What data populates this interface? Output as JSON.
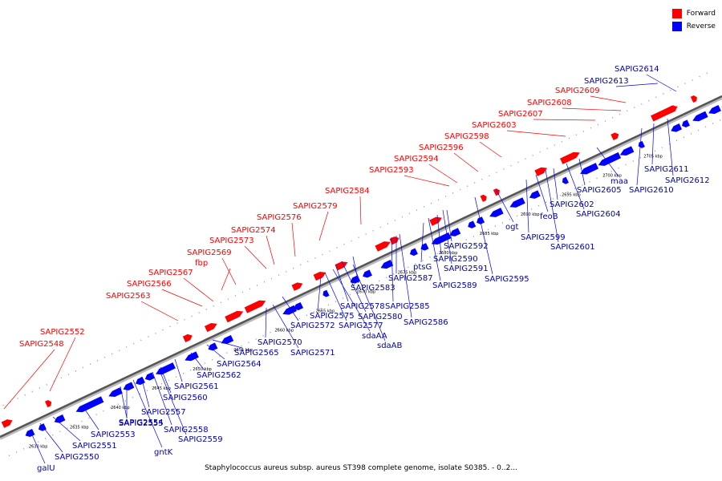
{
  "legend": {
    "forward_label": "Forward",
    "reverse_label": "Reverse",
    "forward_color": "#ff0000",
    "reverse_color": "#0000ff"
  },
  "caption": "Staphylococcus aureus subsp. aureus ST398 complete genome, isolate S0385. - 0..2...",
  "axis": {
    "ticks": [
      "2630 kbp",
      "2635 kbp",
      "2640 kbp",
      "2645 kbp",
      "2650 kbp",
      "2655 kbp",
      "2660 kbp",
      "2665 kbp",
      "2670 kbp",
      "2675 kbp",
      "2680 kbp",
      "2685 kbp",
      "2690 kbp",
      "2695 kbp",
      "2700 kbp",
      "2705 kbp"
    ]
  },
  "forward_genes": [
    "SAPIG2548",
    "SAPIG2552",
    "SAPIG2563",
    "SAPIG2566",
    "SAPIG2567",
    "fbp",
    "SAPIG2569",
    "SAPIG2573",
    "SAPIG2574",
    "SAPIG2576",
    "SAPIG2579",
    "SAPIG2584",
    "SAPIG2593",
    "SAPIG2594",
    "SAPIG2596",
    "SAPIG2598",
    "SAPIG2603",
    "SAPIG2607",
    "SAPIG2608",
    "SAPIG2609"
  ],
  "reverse_genes": [
    "galU",
    "SAPIG2550",
    "SAPIG2551",
    "SAPIG2553",
    "SAPIG2554",
    "gntK",
    "SAPIG2555",
    "SAPIG2557",
    "SAPIG2558",
    "SAPIG2559",
    "SAPIG2560",
    "SAPIG2561",
    "SAPIG2562",
    "SAPIG2564",
    "SAPIG2565",
    "SAPIG2570",
    "SAPIG2571",
    "SAPIG2572",
    "SAPIG2575",
    "SAPIG2577",
    "sdaAA",
    "sdaAB",
    "SAPIG2578",
    "SAPIG2580",
    "SAPIG2583",
    "SAPIG2585",
    "SAPIG2586",
    "SAPIG2587",
    "ptsG",
    "SAPIG2589",
    "SAPIG2590",
    "SAPIG2591",
    "SAPIG2592",
    "SAPIG2595",
    "ogt",
    "SAPIG2599",
    "feoB",
    "SAPIG2601",
    "SAPIG2602",
    "SAPIG2604",
    "SAPIG2605",
    "maa",
    "SAPIG2610",
    "SAPIG2611",
    "SAPIG2612",
    "SAPIG2613",
    "SAPIG2614"
  ]
}
